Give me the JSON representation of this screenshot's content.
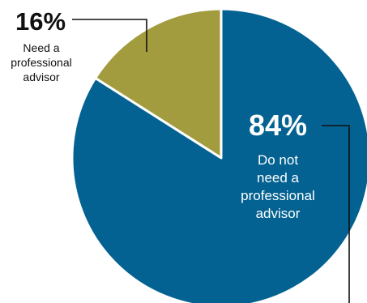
{
  "chart_data": {
    "type": "pie",
    "slices": [
      {
        "label_lines": [
          "Need a",
          "professional",
          "advisor"
        ],
        "value": 16,
        "value_label": "16%",
        "color": "#A29C3E"
      },
      {
        "label_lines": [
          "Do not",
          "need a",
          "professional",
          "advisor"
        ],
        "value": 84,
        "value_label": "84%",
        "color": "#036291"
      }
    ],
    "start_angle_deg": 0,
    "direction": "counterclockwise",
    "slice_border_color": "#ffffff",
    "leader_line_color": "#111111",
    "title": "",
    "legend": "none"
  }
}
